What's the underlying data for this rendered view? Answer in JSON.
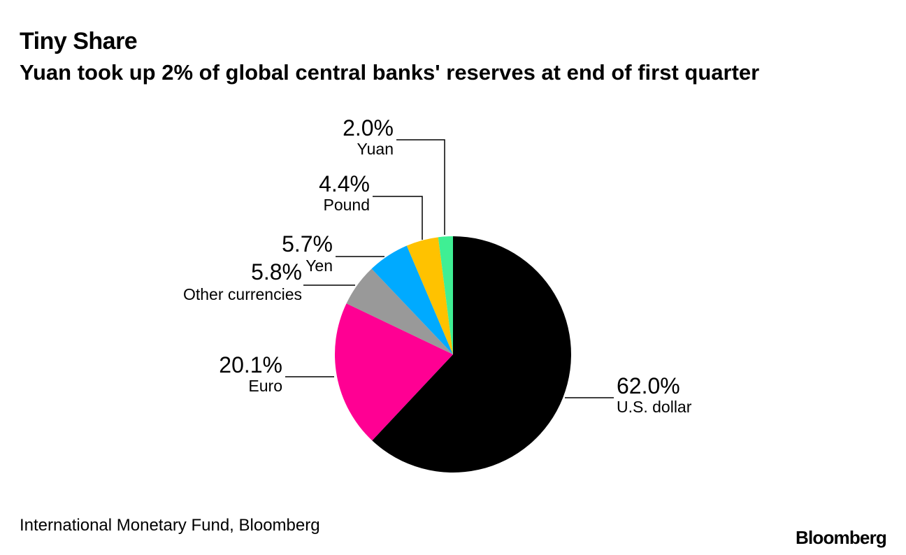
{
  "header": {
    "title": "Tiny Share",
    "subtitle": "Yuan took up 2% of global central banks' reserves at end of first quarter"
  },
  "footer": {
    "source": "International Monetary Fund, Bloomberg",
    "brand": "Bloomberg"
  },
  "chart_data": {
    "type": "pie",
    "title": "Tiny Share",
    "subtitle": "Yuan took up 2% of global central banks' reserves at end of first quarter",
    "start_angle": "12 o'clock",
    "direction": "clockwise",
    "slices": [
      {
        "name": "U.S. dollar",
        "value": 62.0,
        "label": "62.0%",
        "color": "#000000"
      },
      {
        "name": "Euro",
        "value": 20.1,
        "label": "20.1%",
        "color": "#ff0093"
      },
      {
        "name": "Other currencies",
        "value": 5.8,
        "label": "5.8%",
        "color": "#999999"
      },
      {
        "name": "Yen",
        "value": 5.7,
        "label": "5.7%",
        "color": "#00aaff"
      },
      {
        "name": "Pound",
        "value": 4.4,
        "label": "4.4%",
        "color": "#ffc200"
      },
      {
        "name": "Yuan",
        "value": 2.0,
        "label": "2.0%",
        "color": "#3fef94"
      }
    ]
  }
}
